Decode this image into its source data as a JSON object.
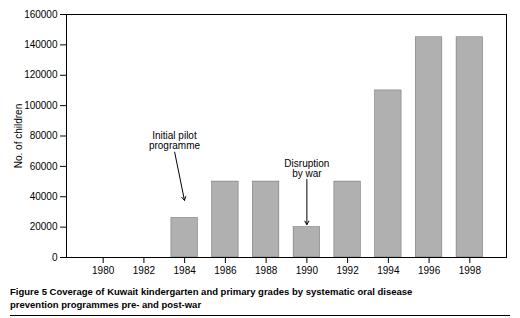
{
  "chart_data": {
    "type": "bar",
    "x": [
      1980,
      1982,
      1984,
      1986,
      1988,
      1990,
      1992,
      1994,
      1996,
      1998
    ],
    "values": [
      0,
      0,
      26000,
      50000,
      50000,
      20000,
      50000,
      110000,
      145000,
      145000
    ],
    "color": "#b0b0b0",
    "ylabel": "No. of children",
    "xlim": [
      1978.2,
      1999.8
    ],
    "xticks": [
      1980,
      1982,
      1984,
      1986,
      1988,
      1990,
      1992,
      1994,
      1996,
      1998
    ],
    "ylim": [
      0,
      160000
    ],
    "yticks": [
      0,
      20000,
      40000,
      60000,
      80000,
      100000,
      120000,
      140000,
      160000
    ],
    "grid": false,
    "annotations": [
      {
        "text": "Initial pilot\nprogramme",
        "x": 1984,
        "y": 37000,
        "text_x": 1983.5,
        "text_y": 70000
      },
      {
        "text": "Disruption\nby war",
        "x": 1990,
        "y": 21000,
        "text_x": 1990.0,
        "text_y": 52000
      }
    ],
    "caption": "Figure 5 Coverage of Kuwait kindergarten and primary grades by systematic oral disease\nprevention programmes pre- and post-war"
  }
}
